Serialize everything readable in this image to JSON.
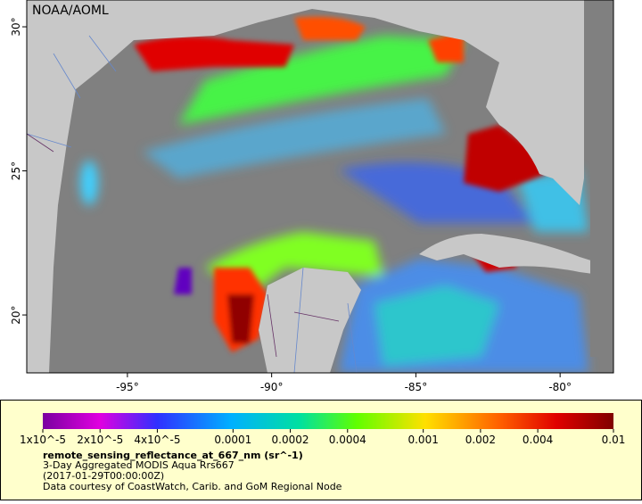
{
  "map": {
    "watermark": "NOAA/AOML",
    "xlim": [
      -98.49,
      -78.15
    ],
    "ylim": [
      17.99,
      30.93
    ],
    "xticks": [
      {
        "value": -95,
        "label": "-95°"
      },
      {
        "value": -90,
        "label": "-90°"
      },
      {
        "value": -85,
        "label": "-85°"
      },
      {
        "value": -80,
        "label": "-80°"
      }
    ],
    "yticks": [
      {
        "value": 20,
        "label": "20°"
      },
      {
        "value": 25,
        "label": "25°"
      },
      {
        "value": 30,
        "label": "30°"
      }
    ]
  },
  "colorbar": {
    "scale": "log",
    "lim": [
      1e-05,
      0.01
    ],
    "ticks": [
      {
        "value": 1e-05,
        "label": "1x10^-5"
      },
      {
        "value": 2e-05,
        "label": "2x10^-5"
      },
      {
        "value": 4e-05,
        "label": "4x10^-5"
      },
      0.0001,
      0.0002,
      0.0004,
      0.001,
      0.002,
      0.004,
      0.01
    ]
  },
  "legend": {
    "variable": "remote_sensing_reflectance_at_667_nm (sr^-1)",
    "dataset": "3-Day Aggregated MODIS Aqua Rrs667",
    "time": "(2017-01-29T00:00:00Z)",
    "credit": "Data courtesy of CoastWatch, Carib. and GoM Regional Node"
  }
}
